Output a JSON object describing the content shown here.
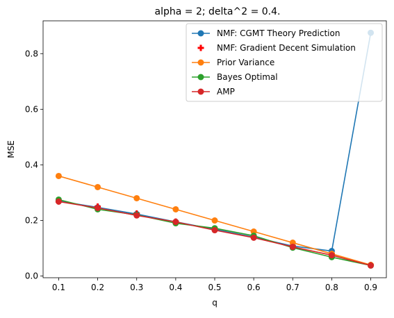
{
  "chart_data": {
    "type": "line",
    "title": "alpha = 2; delta^2 = 0.4.",
    "xlabel": "q",
    "ylabel": "MSE",
    "xlim": [
      0.06,
      0.94
    ],
    "ylim": [
      -0.006,
      0.918
    ],
    "xticks": [
      "0.1",
      "0.2",
      "0.3",
      "0.4",
      "0.5",
      "0.6",
      "0.7",
      "0.8",
      "0.9"
    ],
    "yticks": [
      "0.0",
      "0.2",
      "0.4",
      "0.6",
      "0.8"
    ],
    "grid": false,
    "legend_position": "top-right",
    "x": [
      0.1,
      0.2,
      0.3,
      0.4,
      0.5,
      0.6,
      0.7,
      0.8,
      0.9
    ],
    "series": [
      {
        "name": "NMF: CGMT Theory Prediction",
        "color": "#1f77b4",
        "style": "line-circle",
        "values": [
          0.27,
          0.247,
          0.223,
          0.195,
          0.168,
          0.14,
          0.108,
          0.09,
          0.875
        ]
      },
      {
        "name": "NMF: Gradient Decent Simulation",
        "color": "#ff0000",
        "style": "plus",
        "values": [
          0.268,
          0.25,
          0.225,
          0.196,
          0.168,
          0.14,
          0.108,
          0.08,
          0.04
        ]
      },
      {
        "name": "Prior Variance",
        "color": "#ff7f0e",
        "style": "line-circle",
        "values": [
          0.36,
          0.32,
          0.28,
          0.24,
          0.2,
          0.16,
          0.12,
          0.08,
          0.04
        ]
      },
      {
        "name": "Bayes Optimal",
        "color": "#2ca02c",
        "style": "line-circle",
        "values": [
          0.275,
          0.24,
          0.22,
          0.19,
          0.172,
          0.145,
          0.102,
          0.068,
          0.038
        ]
      },
      {
        "name": "AMP",
        "color": "#d62728",
        "style": "line-circle",
        "values": [
          0.268,
          0.245,
          0.218,
          0.195,
          0.165,
          0.138,
          0.105,
          0.075,
          0.038
        ]
      }
    ]
  }
}
